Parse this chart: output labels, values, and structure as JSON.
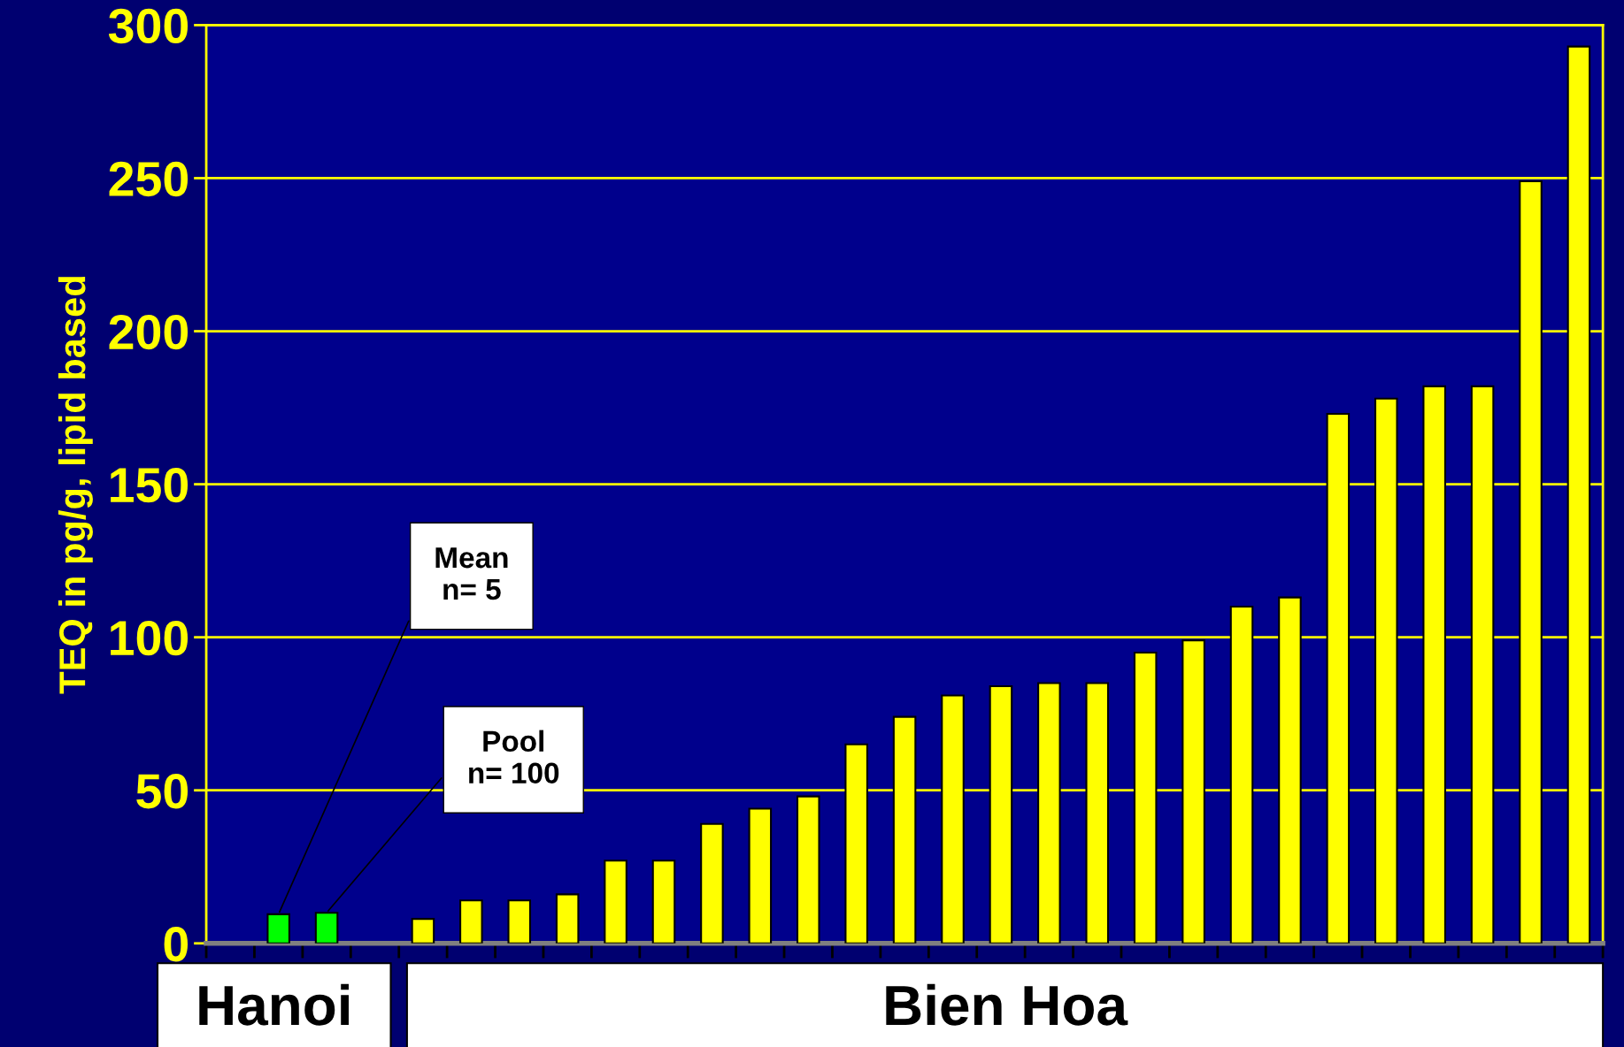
{
  "chart_data": {
    "type": "bar",
    "ylabel": "TEQ in pg/g, lipid based",
    "categories": [
      null,
      null,
      null,
      null,
      null,
      null,
      null,
      null,
      null,
      null,
      null,
      null,
      null,
      null,
      null,
      null,
      null,
      null,
      null,
      null,
      null,
      null,
      null,
      null,
      null,
      null,
      null,
      null,
      null
    ],
    "values": [
      null,
      9.5,
      10,
      null,
      8,
      14,
      14,
      16,
      27,
      27,
      39,
      44,
      48,
      65,
      74,
      81,
      84,
      85,
      85,
      95,
      99,
      110,
      113,
      173,
      178,
      182,
      182,
      249,
      293
    ],
    "colors": [
      "#00ff00",
      "#00ff00",
      "#00ff00",
      "#00ff00",
      "#ffff00",
      "#ffff00",
      "#ffff00",
      "#ffff00",
      "#ffff00",
      "#ffff00",
      "#ffff00",
      "#ffff00",
      "#ffff00",
      "#ffff00",
      "#ffff00",
      "#ffff00",
      "#ffff00",
      "#ffff00",
      "#ffff00",
      "#ffff00",
      "#ffff00",
      "#ffff00",
      "#ffff00",
      "#ffff00",
      "#ffff00",
      "#ffff00",
      "#ffff00",
      "#ffff00",
      "#ffff00"
    ],
    "ylim": [
      0,
      300
    ],
    "yticks": [
      0,
      50,
      100,
      150,
      200,
      250,
      300
    ],
    "grid": "y",
    "annotations": [
      "Mean\nn= 5",
      "Pool\nn= 100",
      "Hanoi",
      "Bien Hoa"
    ]
  }
}
